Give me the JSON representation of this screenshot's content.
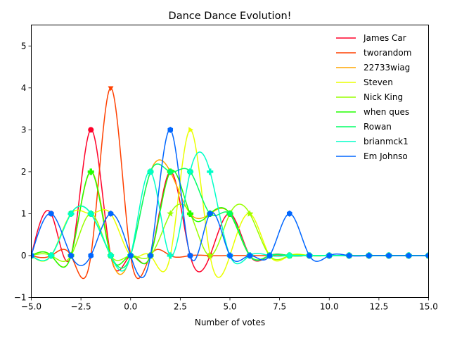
{
  "chart_data": {
    "type": "line",
    "title": "Dance Dance Evolution!",
    "xlabel": "Number of votes",
    "ylabel": "",
    "xlim": [
      -5,
      15
    ],
    "ylim": [
      -1,
      5.5
    ],
    "xticks": [
      -5,
      -2.5,
      0,
      2.5,
      5,
      7.5,
      10,
      12.5,
      15
    ],
    "xtick_labels": [
      "−5.0",
      "−2.5",
      "0.0",
      "2.5",
      "5.0",
      "7.5",
      "10.0",
      "12.5",
      "15.0"
    ],
    "yticks": [
      -1,
      0,
      1,
      2,
      3,
      4,
      5
    ],
    "ytick_labels": [
      "−1",
      "0",
      "1",
      "2",
      "3",
      "4",
      "5"
    ],
    "grid": false,
    "legend_position": "top-right",
    "x": [
      -5,
      -4,
      -3,
      -2,
      -1,
      0,
      1,
      2,
      3,
      4,
      5,
      6,
      7,
      8,
      9,
      10,
      11,
      12,
      13,
      14,
      15
    ],
    "series": [
      {
        "name": "James Car",
        "color": "#ff0029",
        "marker": "circle",
        "values": [
          0,
          1,
          0,
          3,
          0,
          0,
          0,
          2,
          0,
          0,
          1,
          0,
          0,
          0,
          0,
          0,
          0,
          0,
          0,
          0,
          0
        ]
      },
      {
        "name": "tworandom",
        "color": "#ff4000",
        "marker": "triangle-down",
        "values": [
          0,
          0,
          0,
          0,
          4,
          0,
          0,
          0,
          0,
          0,
          0,
          0,
          0,
          0,
          0,
          0,
          0,
          0,
          0,
          0,
          0
        ]
      },
      {
        "name": "22733wiag",
        "color": "#ffa500",
        "marker": "triangle-up",
        "values": [
          0,
          0,
          0,
          2,
          0,
          0,
          2,
          2,
          1,
          1,
          1,
          0,
          0,
          0,
          0,
          0,
          0,
          0,
          0,
          0,
          0
        ]
      },
      {
        "name": "Steven",
        "color": "#eaff00",
        "marker": "triangle-right",
        "values": [
          0,
          0,
          1,
          1,
          1,
          0,
          0,
          0,
          3,
          0,
          0,
          1,
          0,
          0,
          0,
          0,
          0,
          0,
          0,
          0,
          0
        ]
      },
      {
        "name": "Nick King",
        "color": "#99ff00",
        "marker": "star",
        "values": [
          0,
          0,
          0,
          1,
          0,
          0,
          0,
          1,
          1,
          0,
          1,
          1,
          0,
          0,
          0,
          0,
          0,
          0,
          0,
          0,
          0
        ]
      },
      {
        "name": "when ques",
        "color": "#22ff00",
        "marker": "plus",
        "values": [
          0,
          0,
          0,
          2,
          0,
          0,
          0,
          2,
          1,
          1,
          1,
          0,
          0,
          0,
          0,
          0,
          0,
          0,
          0,
          0,
          0
        ]
      },
      {
        "name": "Rowan",
        "color": "#00ff66",
        "marker": "square",
        "values": [
          0,
          0,
          1,
          1,
          0,
          0,
          2,
          2,
          2,
          1,
          1,
          0,
          0,
          0,
          0,
          0,
          0,
          0,
          0,
          0,
          0
        ]
      },
      {
        "name": "brianmck1",
        "color": "#00ffc8",
        "marker": "plus",
        "values": [
          0,
          0,
          1,
          1,
          0,
          0,
          2,
          0,
          2,
          2,
          0,
          0,
          0,
          0,
          0,
          0,
          0,
          0,
          0,
          0,
          0
        ]
      },
      {
        "name": "Em Johnso",
        "color": "#0066ff",
        "marker": "hexagon",
        "values": [
          0,
          1,
          0,
          0,
          1,
          0,
          0,
          3,
          0,
          1,
          0,
          0,
          0,
          1,
          0,
          0,
          0,
          0,
          0,
          0,
          0
        ]
      }
    ]
  }
}
